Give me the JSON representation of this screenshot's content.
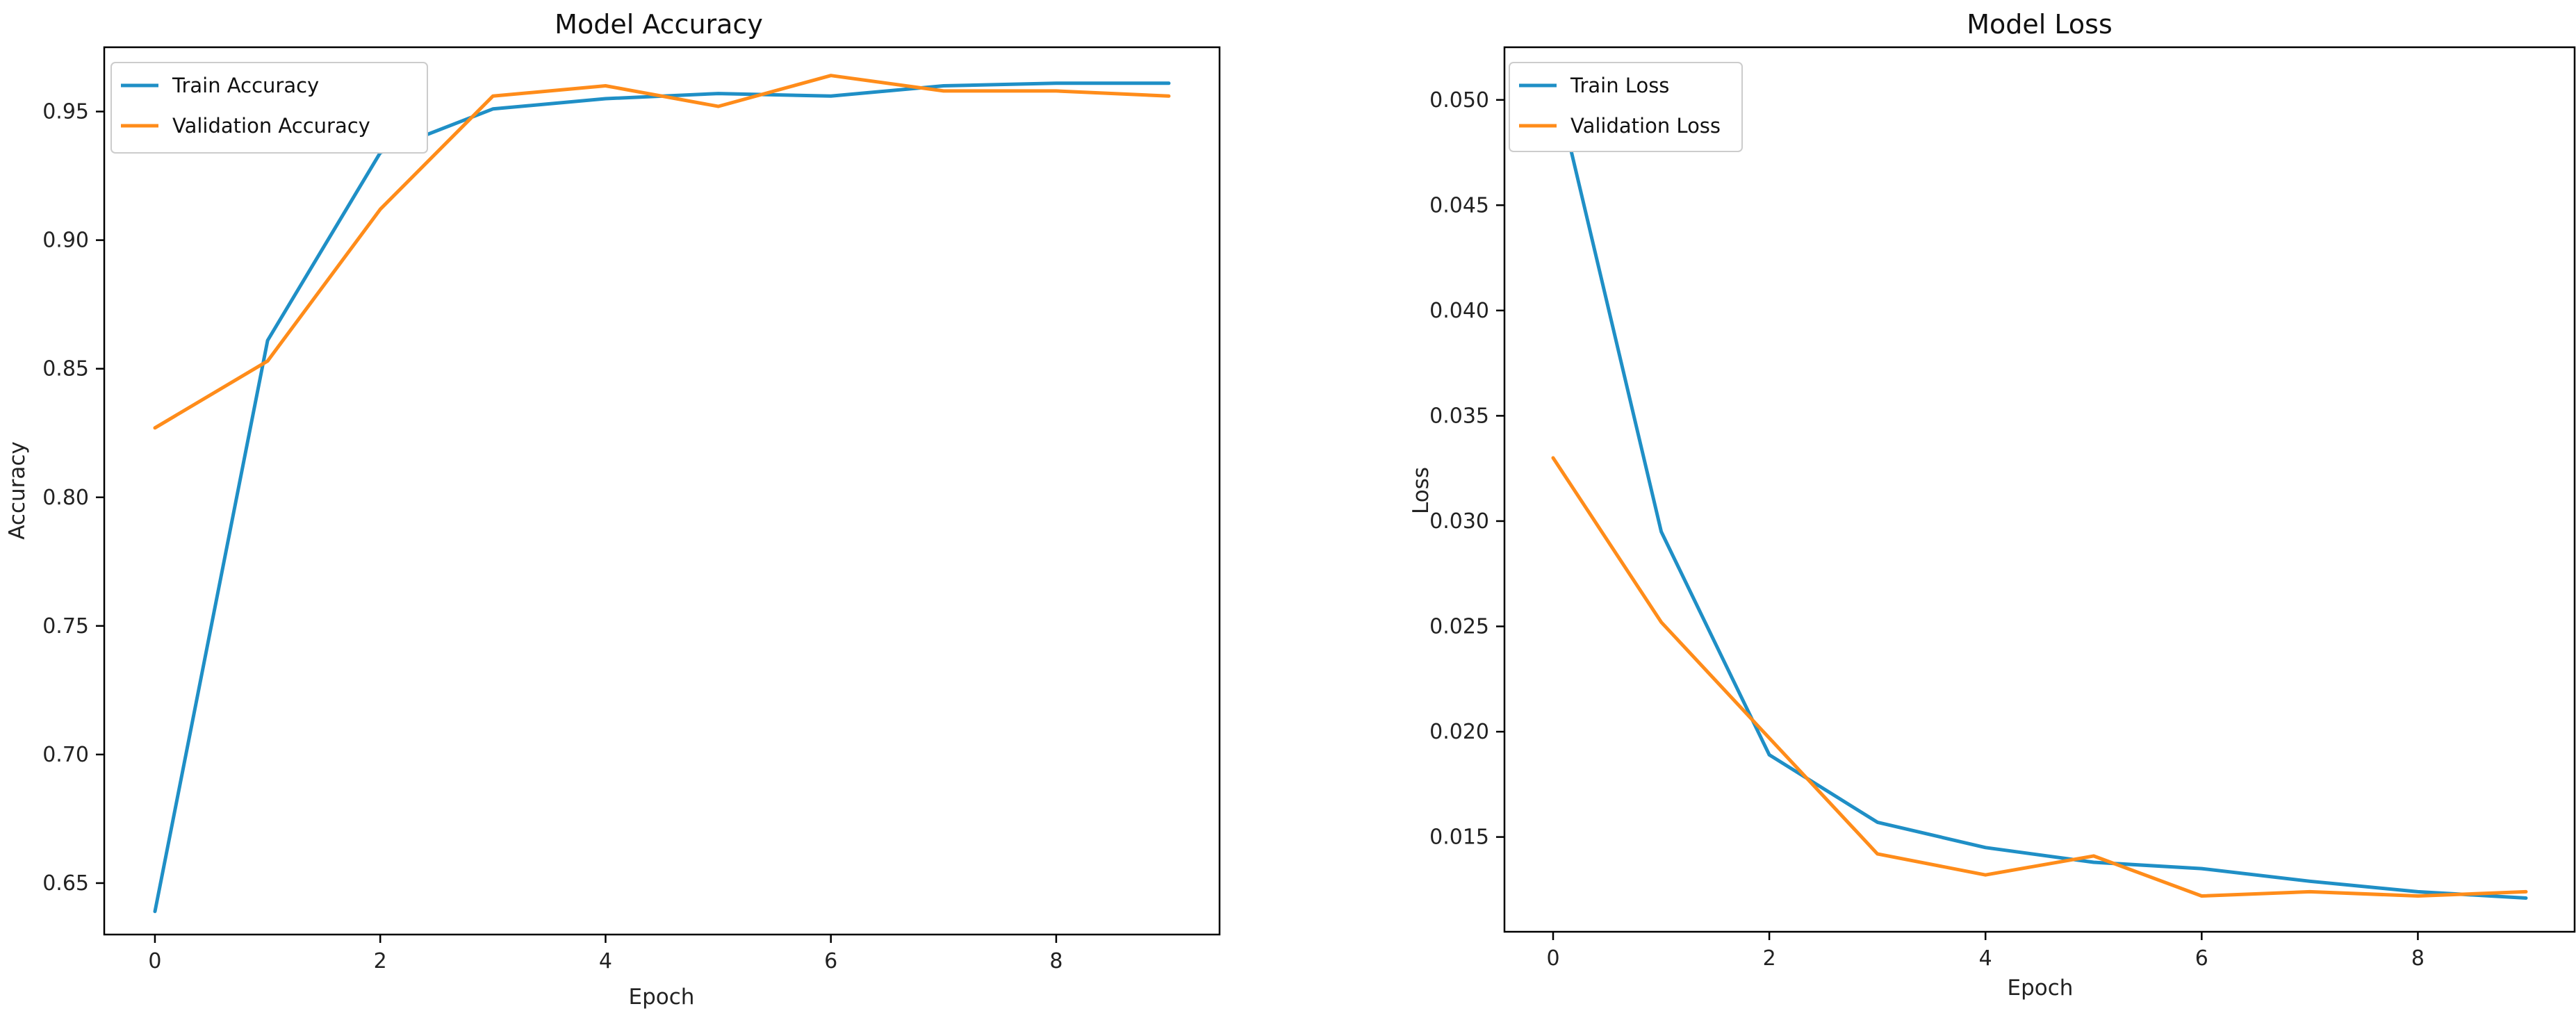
{
  "chart_data": [
    {
      "id": "acc",
      "type": "line",
      "title": "Model Accuracy",
      "xlabel": "Epoch",
      "ylabel": "Accuracy",
      "xlim": [
        -0.45,
        9.45
      ],
      "ylim": [
        0.63,
        0.975
      ],
      "xticks": [
        0,
        2,
        4,
        6,
        8
      ],
      "xtick_labels": [
        "0",
        "2",
        "4",
        "6",
        "8"
      ],
      "yticks": [
        0.65,
        0.7,
        0.75,
        0.8,
        0.85,
        0.9,
        0.95
      ],
      "ytick_labels": [
        "0.65",
        "0.70",
        "0.75",
        "0.80",
        "0.85",
        "0.90",
        "0.95"
      ],
      "legend_position": "top-left",
      "grid": false,
      "x": [
        0,
        1,
        2,
        3,
        4,
        5,
        6,
        7,
        8,
        9
      ],
      "series": [
        {
          "name": "Train Accuracy",
          "color": "#1f8fc6",
          "values": [
            0.639,
            0.861,
            0.934,
            0.951,
            0.955,
            0.957,
            0.956,
            0.96,
            0.961,
            0.961
          ]
        },
        {
          "name": "Validation Accuracy",
          "color": "#ff8c1a",
          "values": [
            0.827,
            0.853,
            0.912,
            0.956,
            0.96,
            0.952,
            0.964,
            0.958,
            0.958,
            0.956
          ]
        }
      ]
    },
    {
      "id": "loss",
      "type": "line",
      "title": "Model Loss",
      "xlabel": "Epoch",
      "ylabel": "Loss",
      "xlim": [
        -0.45,
        9.45
      ],
      "ylim": [
        0.0105,
        0.0525
      ],
      "xticks": [
        0,
        2,
        4,
        6,
        8
      ],
      "xtick_labels": [
        "0",
        "2",
        "4",
        "6",
        "8"
      ],
      "yticks": [
        0.015,
        0.02,
        0.025,
        0.03,
        0.035,
        0.04,
        0.045,
        0.05
      ],
      "ytick_labels": [
        "0.015",
        "0.020",
        "0.025",
        "0.030",
        "0.035",
        "0.040",
        "0.045",
        "0.050"
      ],
      "legend_position": "top-left",
      "grid": false,
      "x": [
        0,
        1,
        2,
        3,
        4,
        5,
        6,
        7,
        8,
        9
      ],
      "series": [
        {
          "name": "Train Loss",
          "color": "#1f8fc6",
          "values": [
            0.0512,
            0.0295,
            0.0189,
            0.0157,
            0.0145,
            0.0138,
            0.0135,
            0.0129,
            0.0124,
            0.0121
          ]
        },
        {
          "name": "Validation Loss",
          "color": "#ff8c1a",
          "values": [
            0.033,
            0.0252,
            0.0197,
            0.0142,
            0.0132,
            0.0141,
            0.0122,
            0.0124,
            0.0122,
            0.0124
          ]
        }
      ]
    }
  ]
}
